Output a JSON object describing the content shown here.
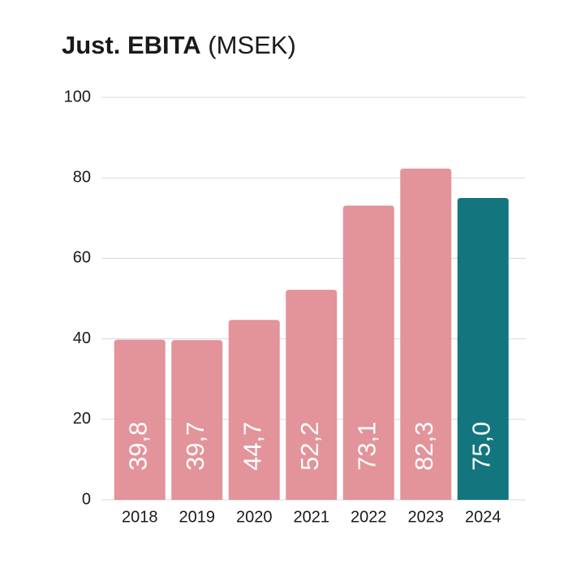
{
  "chart_data": {
    "type": "bar",
    "title": "Just. EBITA",
    "unit": "(MSEK)",
    "categories": [
      "2018",
      "2019",
      "2020",
      "2021",
      "2022",
      "2023",
      "2024"
    ],
    "values": [
      39.8,
      39.7,
      44.7,
      52.2,
      73.1,
      82.3,
      75.0
    ],
    "value_labels": [
      "39,8",
      "39,7",
      "44,7",
      "52,2",
      "73,1",
      "82,3",
      "75,0"
    ],
    "colors": [
      "#e3939a",
      "#e3939a",
      "#e3939a",
      "#e3939a",
      "#e3939a",
      "#e3939a",
      "#13757e"
    ],
    "ylim": [
      0,
      100
    ],
    "yticks": [
      0,
      20,
      40,
      60,
      80,
      100
    ],
    "grid": true
  }
}
